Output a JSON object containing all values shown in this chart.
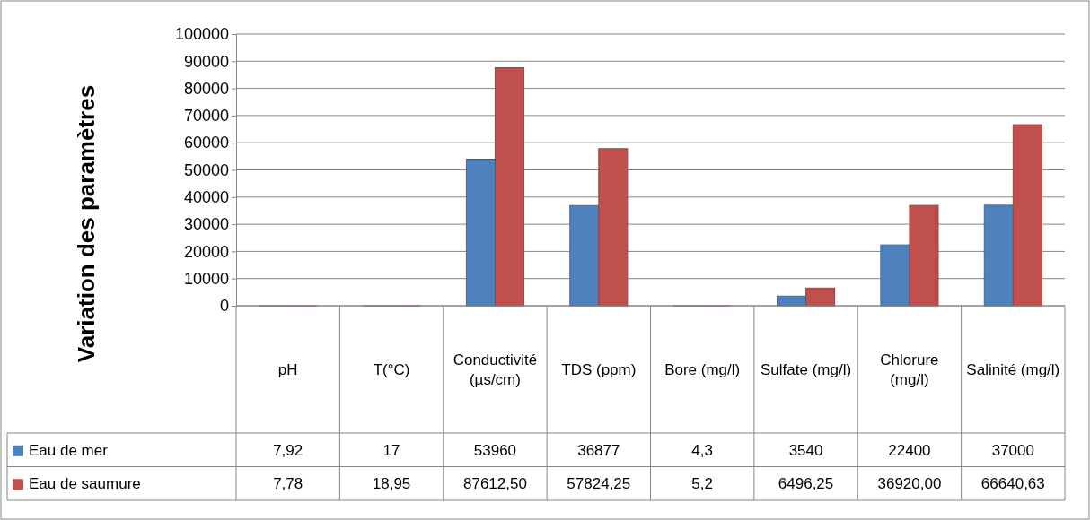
{
  "chart_data": {
    "type": "bar",
    "ylabel": "Variation des paramètres",
    "categories": [
      "pH",
      "T(°C)",
      "Conductivité (µs/cm)",
      "TDS (ppm)",
      "Bore (mg/l)",
      "Sulfate (mg/l)",
      "Chlorure (mg/l)",
      "Salinité (mg/l)"
    ],
    "series": [
      {
        "name": "Eau de mer",
        "color": "#4f81bd",
        "values": [
          7.92,
          17,
          53960,
          36877,
          4.3,
          3540,
          22400,
          37000
        ],
        "value_labels": [
          "7,92",
          "17",
          "53960",
          "36877",
          "4,3",
          "3540",
          "22400",
          "37000"
        ]
      },
      {
        "name": "Eau de saumure",
        "color": "#c0504d",
        "values": [
          7.78,
          18.95,
          87612.5,
          57824.25,
          5.2,
          6496.25,
          36920,
          66640.63
        ],
        "value_labels": [
          "7,78",
          "18,95",
          "87612,50",
          "57824,25",
          "5,2",
          "6496,25",
          "36920,00",
          "66640,63"
        ]
      }
    ],
    "ylim": [
      0,
      100000
    ],
    "yticks": [
      0,
      10000,
      20000,
      30000,
      40000,
      50000,
      60000,
      70000,
      80000,
      90000,
      100000
    ],
    "grid": "y",
    "legend": "bottom"
  }
}
